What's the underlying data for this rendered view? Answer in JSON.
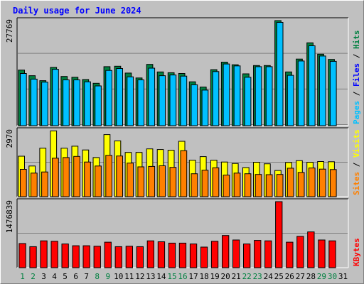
{
  "chart_data": {
    "title": "Daily usage for June 2024",
    "categories": [
      "1",
      "2",
      "3",
      "4",
      "5",
      "6",
      "7",
      "8",
      "9",
      "10",
      "11",
      "12",
      "13",
      "14",
      "15",
      "16",
      "17",
      "18",
      "19",
      "20",
      "21",
      "22",
      "23",
      "24",
      "25",
      "26",
      "27",
      "28",
      "29",
      "30",
      "31"
    ],
    "weekend_days": [
      "1",
      "2",
      "8",
      "9",
      "15",
      "16",
      "22",
      "23",
      "29",
      "30"
    ],
    "colors": {
      "hits": "#008040",
      "files": "#00c0ff",
      "pages": "#00c0ff",
      "visits": "#ffff00",
      "sites": "#ff8000",
      "kbytes": "#ff0000",
      "title": "#0000ff",
      "weekday": "#000000",
      "weekend": "#008040"
    },
    "panels": [
      {
        "type": "bar",
        "ymax_label": "27769",
        "ymax": 27769,
        "axis_label": [
          {
            "text": "Pages",
            "color": "#00c0ff"
          },
          {
            "text": " / ",
            "color": "#000000"
          },
          {
            "text": "Files",
            "color": "#0000ff"
          },
          {
            "text": " / ",
            "color": "#000000"
          },
          {
            "text": "Hits",
            "color": "#008040"
          }
        ],
        "series": [
          {
            "name": "Hits",
            "color": "#008040",
            "values": [
              14700,
              13200,
              11900,
              15400,
              13000,
              12800,
              12200,
              11200,
              15600,
              15700,
              13900,
              12600,
              16200,
              14200,
              14000,
              13800,
              11600,
              10200,
              14800,
              16800,
              16100,
              13700,
              15900,
              15900,
              27769,
              14200,
              17600,
              21900,
              18900,
              17500,
              0
            ]
          },
          {
            "name": "Files",
            "color": "#00c0ff",
            "values": [
              13800,
              12300,
              11500,
              14900,
              12100,
              12100,
              11600,
              10500,
              14600,
              15100,
              12900,
              12100,
              15200,
              13200,
              13400,
              13100,
              10800,
              9400,
              14300,
              16300,
              15800,
              12800,
              15600,
              15600,
              27300,
              13300,
              17100,
              21100,
              18400,
              17000,
              0
            ]
          }
        ]
      },
      {
        "type": "bar",
        "ymax_label": "2970",
        "ymax": 2970,
        "axis_label": [
          {
            "text": "Sites",
            "color": "#ff8000"
          },
          {
            "text": " / ",
            "color": "#000000"
          },
          {
            "text": "Visits",
            "color": "#ffff00"
          }
        ],
        "series": [
          {
            "name": "Visits",
            "color": "#ffff00",
            "values": [
              1820,
              1380,
              2180,
              2960,
              2180,
              2270,
              2100,
              1760,
              2790,
              2510,
              1990,
              1990,
              2150,
              2120,
              2090,
              2490,
              1640,
              1800,
              1640,
              1560,
              1490,
              1310,
              1550,
              1480,
              1180,
              1540,
              1620,
              1550,
              1580,
              1570,
              0
            ]
          },
          {
            "name": "Sites",
            "color": "#ff8000",
            "values": [
              1230,
              1060,
              1110,
              1730,
              1760,
              1810,
              1560,
              1380,
              1860,
              1830,
              1510,
              1340,
              1360,
              1390,
              1320,
              2070,
              1030,
              1190,
              1300,
              970,
              1060,
              1030,
              1000,
              990,
              1000,
              1280,
              1090,
              1290,
              1240,
              1220,
              0
            ]
          }
        ]
      },
      {
        "type": "bar",
        "ymax_label": "1476839",
        "ymax": 1476839,
        "axis_label": [
          {
            "text": "KBytes",
            "color": "#ff0000"
          }
        ],
        "series": [
          {
            "name": "KBytes",
            "color": "#ff0000",
            "values": [
              540000,
              470000,
              600000,
              590000,
              530000,
              490000,
              490000,
              480000,
              570000,
              470000,
              480000,
              470000,
              600000,
              580000,
              550000,
              550000,
              530000,
              460000,
              590000,
              720000,
              620000,
              530000,
              610000,
              600000,
              1476839,
              570000,
              700000,
              800000,
              620000,
              600000,
              0
            ]
          }
        ]
      }
    ]
  }
}
